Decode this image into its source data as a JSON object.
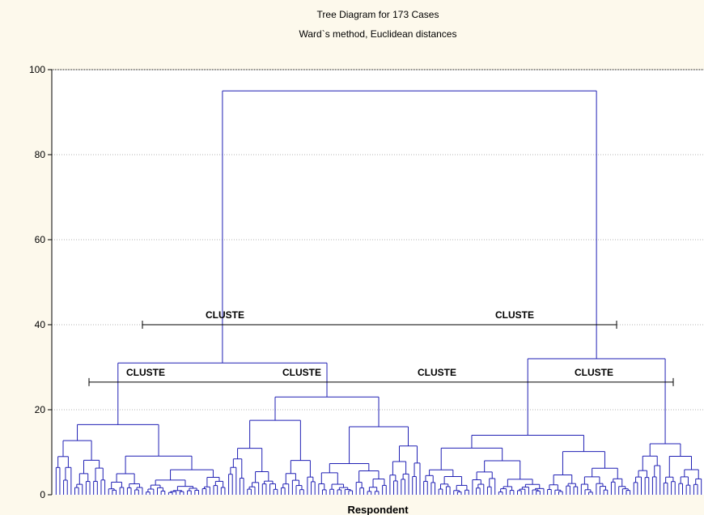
{
  "chart_data": {
    "type": "dendrogram",
    "title": "Tree Diagram for 173 Cases",
    "subtitle": "Ward`s method, Euclidean distances",
    "xlabel": "Respondent",
    "ylabel": "",
    "ylim": [
      0,
      100
    ],
    "yticks": [
      0,
      20,
      40,
      60,
      80,
      100
    ],
    "grid": true,
    "n_cases": 173,
    "merges": [
      {
        "name": "root",
        "height": 95
      },
      {
        "name": "left-main",
        "height": 31
      },
      {
        "name": "right-main",
        "height": 32
      },
      {
        "name": "left-a",
        "height": 16.5
      },
      {
        "name": "left-b",
        "height": 23
      },
      {
        "name": "left-b1",
        "height": 17.5
      },
      {
        "name": "left-b2",
        "height": 16
      },
      {
        "name": "right-a",
        "height": 14
      },
      {
        "name": "right-b",
        "height": 12
      }
    ],
    "cut_lines": [
      {
        "height": 40,
        "labels": [
          "CLUSTE",
          "CLUSTE"
        ]
      },
      {
        "height": 26.5,
        "labels": [
          "CLUSTE",
          "CLUSTE",
          "CLUSTE",
          "CLUSTE"
        ]
      }
    ],
    "line_color": "#1f1fb4"
  }
}
